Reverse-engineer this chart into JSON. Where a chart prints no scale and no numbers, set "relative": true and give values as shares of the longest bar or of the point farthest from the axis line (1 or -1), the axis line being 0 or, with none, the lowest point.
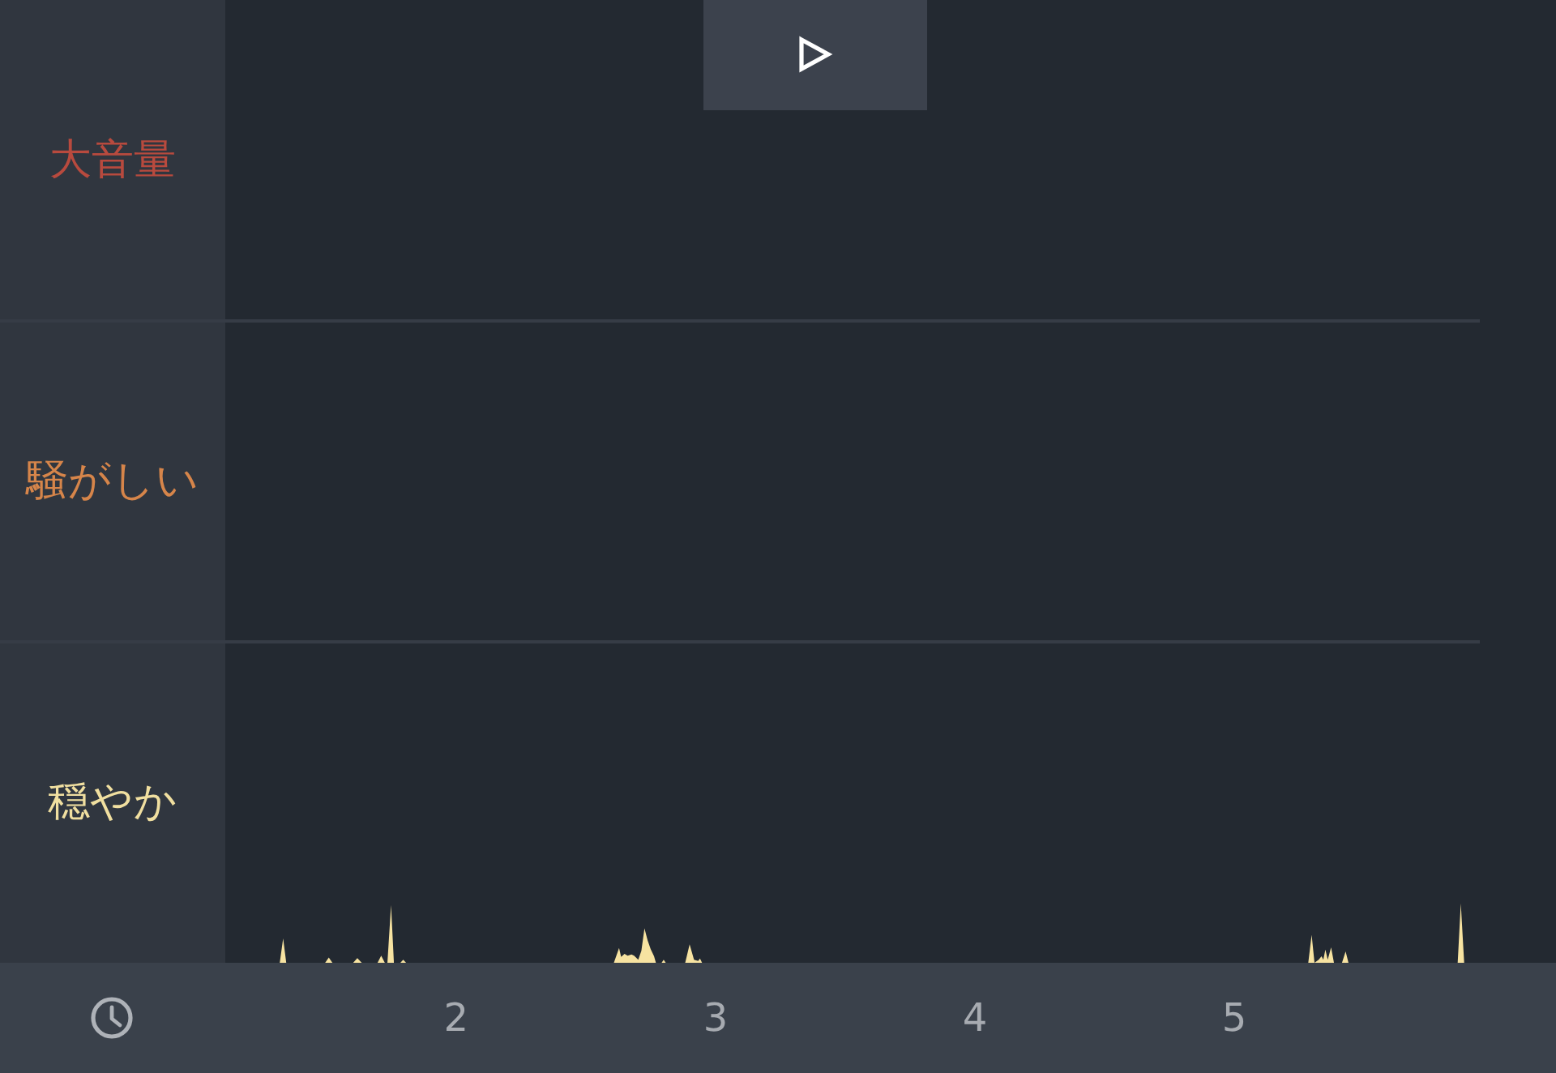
{
  "chart_data": {
    "type": "area",
    "relative": true,
    "x": [
      1.12,
      1.32,
      1.333,
      1.345,
      1.495,
      1.509,
      1.523,
      1.603,
      1.619,
      1.636,
      1.697,
      1.711,
      1.725,
      1.735,
      1.749,
      1.76,
      1.785,
      1.796,
      1.807,
      2.608,
      2.628,
      2.636,
      2.649,
      2.661,
      2.676,
      2.686,
      2.702,
      2.714,
      2.726,
      2.738,
      2.75,
      2.763,
      2.77,
      2.792,
      2.8,
      2.808,
      2.883,
      2.9,
      2.917,
      2.933,
      2.94,
      2.948,
      5.285,
      5.298,
      5.309,
      5.325,
      5.336,
      5.343,
      5.351,
      5.36,
      5.373,
      5.384,
      5.415,
      5.429,
      5.44,
      5.861,
      5.873,
      5.886,
      6.23
    ],
    "values": [
      0,
      0,
      0.41,
      0,
      0,
      0.09,
      0,
      0,
      0.08,
      0,
      0,
      0.12,
      0,
      0,
      0.97,
      0,
      0,
      0.05,
      0,
      0,
      0.25,
      0.1,
      0.15,
      0.12,
      0.14,
      0.12,
      0.05,
      0.2,
      0.58,
      0.38,
      0.23,
      0.11,
      0,
      0,
      0.05,
      0,
      0,
      0.31,
      0.05,
      0.03,
      0.07,
      0,
      0,
      0.47,
      0,
      0.05,
      0.11,
      0.05,
      0.22,
      0.05,
      0.26,
      0,
      0,
      0.19,
      0,
      0,
      1,
      0,
      0
    ],
    "color": "#f7e3a1",
    "xlim": [
      1.11,
      6.24
    ],
    "xticks": [
      2,
      3,
      4,
      5
    ],
    "bands": [
      {
        "axis": "y",
        "from": 0,
        "to": 5.4,
        "label": "穏やか",
        "color": "#232931"
      },
      {
        "axis": "y",
        "from": 5.4,
        "to": 10.8,
        "label": "騒がしい",
        "color": "#232931"
      },
      {
        "axis": "y",
        "from": 10.8,
        "to": 16.2,
        "label": "大音量",
        "color": "#232931"
      }
    ]
  }
}
